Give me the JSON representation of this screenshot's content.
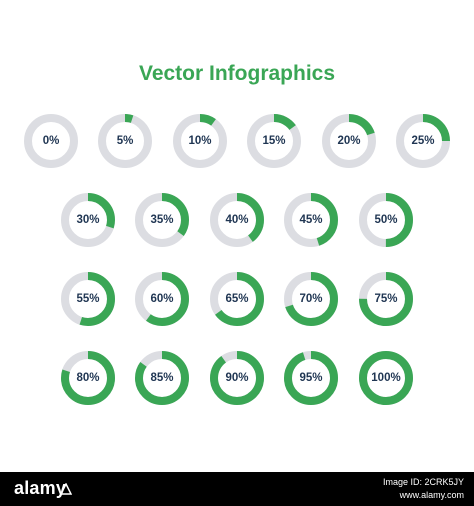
{
  "title": "Vector Infographics",
  "colors": {
    "accent": "#3aa655",
    "track": "#dcdde2",
    "label": "#1f3552",
    "footer_bg": "#000000"
  },
  "rings": [
    {
      "label": "0%",
      "percent": 0
    },
    {
      "label": "5%",
      "percent": 5
    },
    {
      "label": "10%",
      "percent": 10
    },
    {
      "label": "15%",
      "percent": 15
    },
    {
      "label": "20%",
      "percent": 20
    },
    {
      "label": "25%",
      "percent": 25
    },
    {
      "label": "30%",
      "percent": 30
    },
    {
      "label": "35%",
      "percent": 35
    },
    {
      "label": "40%",
      "percent": 40
    },
    {
      "label": "45%",
      "percent": 45
    },
    {
      "label": "50%",
      "percent": 50
    },
    {
      "label": "55%",
      "percent": 55
    },
    {
      "label": "60%",
      "percent": 60
    },
    {
      "label": "65%",
      "percent": 65
    },
    {
      "label": "70%",
      "percent": 70
    },
    {
      "label": "75%",
      "percent": 75
    },
    {
      "label": "80%",
      "percent": 80
    },
    {
      "label": "85%",
      "percent": 85
    },
    {
      "label": "90%",
      "percent": 90
    },
    {
      "label": "95%",
      "percent": 95
    },
    {
      "label": "100%",
      "percent": 100
    }
  ],
  "footer": {
    "brand": "alamy",
    "brand_icon": "alamy-a-icon",
    "image_id_line": "Image ID: 2CRK5JY",
    "site": "www.alamy.com"
  }
}
